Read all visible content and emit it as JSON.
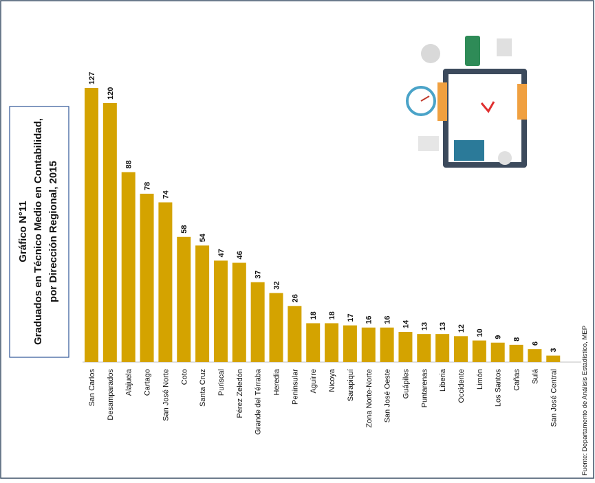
{
  "chart_data": {
    "type": "bar",
    "title": [
      "Gráfico N°11",
      "Graduados en Técnico Medio en Contabilidad,",
      "por Dirección Regional, 2015"
    ],
    "source": "Fuente: Departamento de Análisis Estadístico, MEP",
    "categories": [
      "San Carlos",
      "Desamparados",
      "Alajuela",
      "Cartago",
      "San José Norte",
      "Coto",
      "Santa Cruz",
      "Puriscal",
      "Pérez Zeledón",
      "Grande del Térraba",
      "Heredia",
      "Peninsular",
      "Aguirre",
      "Nicoya",
      "Sarapiquí",
      "Zona Norte-Norte",
      "San José Oeste",
      "Guápiles",
      "Puntarenas",
      "Liberia",
      "Occidente",
      "Limón",
      "Los Santos",
      "Cañas",
      "Sulá",
      "San José Central"
    ],
    "values": [
      127,
      120,
      88,
      78,
      74,
      58,
      54,
      47,
      46,
      37,
      32,
      26,
      18,
      18,
      17,
      16,
      16,
      14,
      13,
      13,
      12,
      10,
      9,
      8,
      6,
      3
    ],
    "color": "#d4a300"
  }
}
